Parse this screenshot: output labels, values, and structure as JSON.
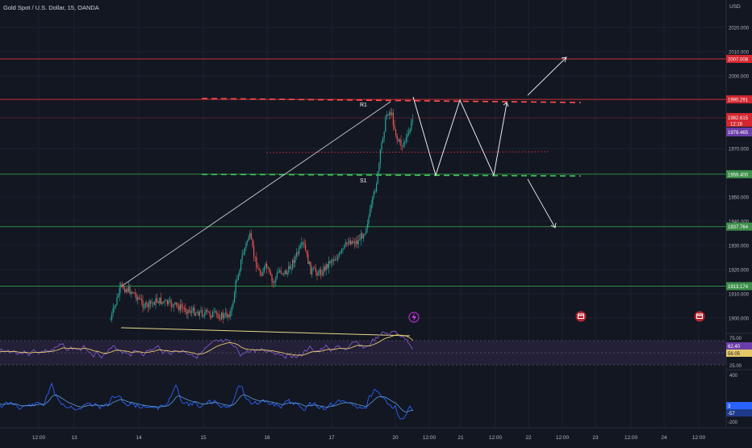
{
  "header": {
    "title": "Gold Spot / U.S. Dollar, 15, OANDA",
    "currency": "USD"
  },
  "colors": {
    "background": "#131722",
    "grid": "#1e222d",
    "axis_text": "#b2b5be",
    "candle_up": "#26a69a",
    "candle_down": "#ef5350",
    "red_line": "#c8303a",
    "green_line": "#2f8a45",
    "red_label": "#d3262f",
    "green_label": "#3d8f4b",
    "purple_label": "#6a3ea8",
    "rsi": "#7e57c2",
    "rsi_ma": "#e6c86a",
    "rsi_band": "#2a2440",
    "cci": "#2962ff",
    "cci_ma": "#5b9bd5",
    "cci_label": "#2962ff",
    "drawing": "#c9cdd6",
    "event_icon": "#b9262f",
    "flash_icon": "#9c27b0"
  },
  "price_axis": {
    "ticks": [
      "2020.000",
      "2010.000",
      "2000.000",
      "1970.000",
      "1950.000",
      "1940.000",
      "1930.000",
      "1920.000",
      "1910.000",
      "1900.000"
    ],
    "levels": [
      {
        "label": "2007.008",
        "type": "resistance"
      },
      {
        "label": "1990.291",
        "type": "resistance"
      },
      {
        "label": "1959.400",
        "type": "support"
      },
      {
        "label": "1937.764",
        "type": "support"
      },
      {
        "label": "1913.174",
        "type": "support"
      }
    ],
    "current_price": {
      "value": "1982.615",
      "countdown": "12:16"
    },
    "purple_badge": "1978.465"
  },
  "drawings": {
    "r1_label": "R1",
    "s1_label": "S1"
  },
  "rsi_panel": {
    "ticks": [
      "75.00",
      "50.00",
      "25.00"
    ],
    "value_label": "62.40",
    "ma_label": "56.05"
  },
  "cci_panel": {
    "top_tick": "400",
    "bottom_tick": "-200",
    "value_label": "3",
    "ma_label": "-57"
  },
  "time_axis": {
    "labels": [
      "12:00",
      "13",
      "14",
      "15",
      "16",
      "17",
      "20",
      "12:00",
      "21",
      "12:00",
      "22",
      "12:00",
      "23",
      "12:00",
      "24",
      "12:00"
    ]
  },
  "chart_data": {
    "type": "candlestick",
    "title": "Gold Spot / U.S. Dollar, 15, OANDA",
    "ylabel": "USD",
    "ylim": [
      1897,
      2030
    ],
    "x_labels": [
      "12:00",
      "13",
      "14",
      "15",
      "16",
      "17",
      "20",
      "12:00",
      "21",
      "12:00",
      "22",
      "12:00",
      "23",
      "12:00",
      "24",
      "12:00"
    ],
    "horizontal_levels": [
      2007.008,
      1990.291,
      1959.4,
      1937.764,
      1913.174
    ],
    "current_price": 1982.615,
    "price_path_keypoints": [
      {
        "x": "13 12:00",
        "price": 1907
      },
      {
        "x": "14 00:00",
        "price": 1912
      },
      {
        "x": "14 12:00",
        "price": 1906
      },
      {
        "x": "15 00:00",
        "price": 1904
      },
      {
        "x": "15 08:00",
        "price": 1901
      },
      {
        "x": "15 14:00",
        "price": 1928
      },
      {
        "x": "15 18:00",
        "price": 1935
      },
      {
        "x": "16 00:00",
        "price": 1920
      },
      {
        "x": "16 12:00",
        "price": 1925
      },
      {
        "x": "16 18:00",
        "price": 1930
      },
      {
        "x": "17 00:00",
        "price": 1922
      },
      {
        "x": "17 12:00",
        "price": 1931
      },
      {
        "x": "17 18:00",
        "price": 1945
      },
      {
        "x": "17 22:00",
        "price": 1975
      },
      {
        "x": "20 00:00",
        "price": 1990
      },
      {
        "x": "20 04:00",
        "price": 1976
      },
      {
        "x": "20 08:00",
        "price": 1982.615
      }
    ],
    "projected_path": [
      {
        "x": "20 08:00",
        "price": 1992
      },
      {
        "x": "20 14:00",
        "price": 1959.4
      },
      {
        "x": "21 00:00",
        "price": 1990.291
      },
      {
        "x": "21 12:00",
        "price": 1959.4
      },
      {
        "x": "21 16:00",
        "price": 1990.291
      }
    ],
    "rsi": {
      "ylim": [
        25,
        75
      ],
      "last": 62.4,
      "ma_last": 56.05
    },
    "cci": {
      "ylim": [
        -200,
        400
      ],
      "last": 3,
      "ma_last": -57
    }
  }
}
